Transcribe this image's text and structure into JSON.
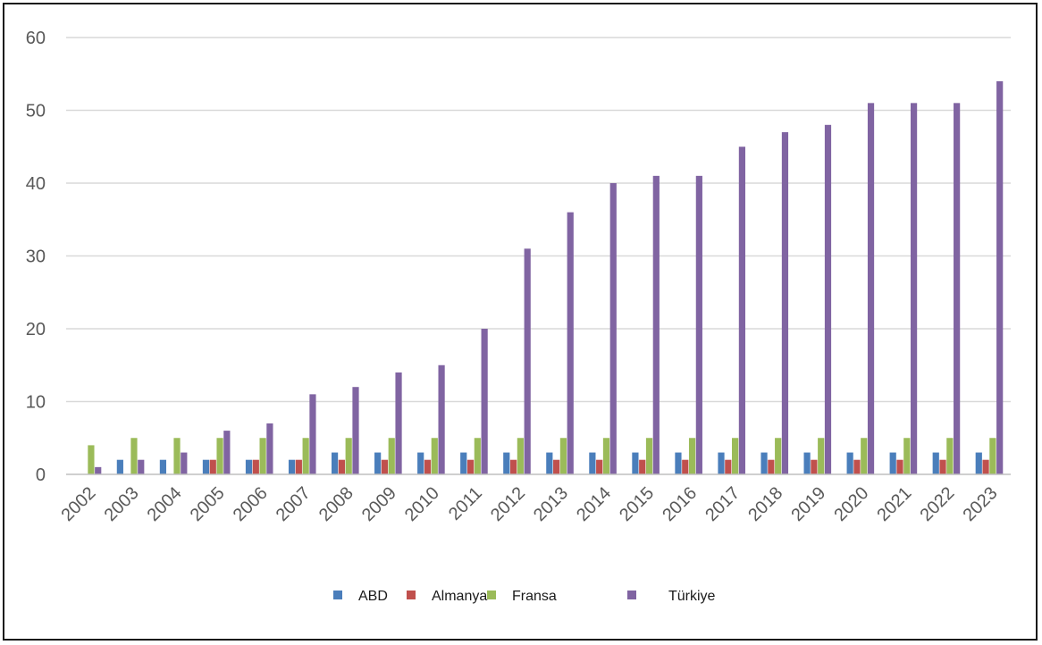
{
  "chart_data": {
    "type": "bar",
    "title": "",
    "xlabel": "",
    "ylabel": "",
    "ylim": [
      0,
      60
    ],
    "yticks": [
      0,
      10,
      20,
      30,
      40,
      50,
      60
    ],
    "grid": true,
    "legend_position": "bottom",
    "categories": [
      "2002",
      "2003",
      "2004",
      "2005",
      "2006",
      "2007",
      "2008",
      "2009",
      "2010",
      "2011",
      "2012",
      "2013",
      "2014",
      "2015",
      "2016",
      "2017",
      "2018",
      "2019",
      "2020",
      "2021",
      "2022",
      "2023"
    ],
    "series": [
      {
        "name": "ABD",
        "color": "#4a7ebb",
        "values": [
          0,
          2,
          2,
          2,
          2,
          2,
          3,
          3,
          3,
          3,
          3,
          3,
          3,
          3,
          3,
          3,
          3,
          3,
          3,
          3,
          3,
          3
        ]
      },
      {
        "name": "Almanya",
        "color": "#c0504d",
        "values": [
          0,
          0,
          0,
          2,
          2,
          2,
          2,
          2,
          2,
          2,
          2,
          2,
          2,
          2,
          2,
          2,
          2,
          2,
          2,
          2,
          2,
          2
        ]
      },
      {
        "name": "Fransa",
        "color": "#9bbb59",
        "values": [
          4,
          5,
          5,
          5,
          5,
          5,
          5,
          5,
          5,
          5,
          5,
          5,
          5,
          5,
          5,
          5,
          5,
          5,
          5,
          5,
          5,
          5
        ]
      },
      {
        "name": "Türkiye",
        "color": "#8064a2",
        "values": [
          1,
          2,
          3,
          6,
          7,
          11,
          12,
          14,
          15,
          20,
          31,
          36,
          40,
          41,
          41,
          45,
          47,
          48,
          51,
          51,
          51,
          54
        ]
      }
    ]
  }
}
